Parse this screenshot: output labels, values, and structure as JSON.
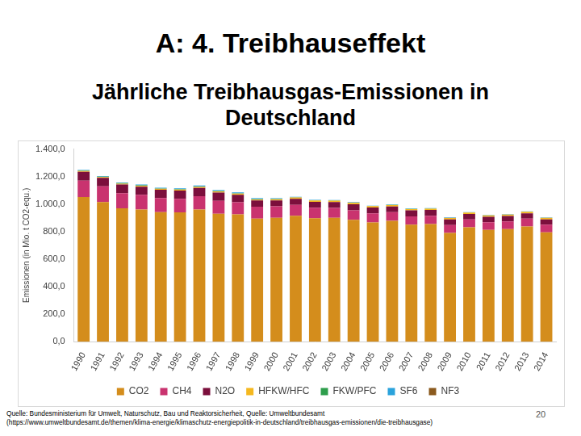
{
  "slide": {
    "heading": "A: 4. Treibhauseffekt",
    "source": [
      "Quelle: Bundesministerium für Umwelt, Naturschutz, Bau und Reaktorsicherheit, Quelle: Umweltbundesamt",
      "(https://www.umweltbundesamt.de/themen/klima-energie/klimaschutz-energiepolitik-in-deutschland/treibhausgas-emissionen/die-treibhausgase)"
    ],
    "page_number": "20"
  },
  "chart_data": {
    "type": "bar",
    "title": "Jährliche Treibhausgas-Emissionen in Deutschland",
    "y_label": "Emissionen (in Mio. t CO2-equ.)",
    "stacked": true,
    "grid": false,
    "legend": "bottom",
    "categories": [
      "1990",
      "1991",
      "1992",
      "1993",
      "1994",
      "1995",
      "1996",
      "1997",
      "1998",
      "1999",
      "2000",
      "2001",
      "2002",
      "2003",
      "2004",
      "2005",
      "2006",
      "2007",
      "2008",
      "2009",
      "2010",
      "2011",
      "2012",
      "2013",
      "2014"
    ],
    "ylim": [
      0,
      1400
    ],
    "yticks": [
      {
        "value": 0,
        "label": "0,0"
      },
      {
        "value": 200,
        "label": "200,0"
      },
      {
        "value": 400,
        "label": "400,0"
      },
      {
        "value": 600,
        "label": "600,0"
      },
      {
        "value": 800,
        "label": "800,0"
      },
      {
        "value": 1000,
        "label": "1.000,0"
      },
      {
        "value": 1200,
        "label": "1.200,0"
      },
      {
        "value": 1400,
        "label": "1.400,0"
      }
    ],
    "series": [
      {
        "name": "CO2",
        "color": "#d48d1c",
        "values": [
          1052,
          1015,
          970,
          960,
          942,
          940,
          960,
          930,
          925,
          895,
          900,
          915,
          898,
          900,
          885,
          867,
          878,
          850,
          855,
          790,
          832,
          812,
          818,
          838,
          795
        ]
      },
      {
        "name": "CH4",
        "color": "#c9336f",
        "values": [
          119,
          114,
          110,
          107,
          102,
          99,
          97,
          93,
          89,
          86,
          84,
          80,
          76,
          72,
          70,
          66,
          63,
          61,
          60,
          58,
          57,
          56,
          56,
          56,
          55
        ]
      },
      {
        "name": "N2O",
        "color": "#7b0f3c",
        "values": [
          64,
          62,
          63,
          60,
          60,
          60,
          61,
          61,
          54,
          45,
          43,
          44,
          43,
          43,
          44,
          42,
          42,
          43,
          42,
          41,
          39,
          39,
          39,
          39,
          39
        ]
      },
      {
        "name": "HFKW/HFC",
        "color": "#f5b81f",
        "values": [
          6,
          6,
          6,
          7,
          7,
          7,
          8,
          8,
          8,
          8,
          9,
          9,
          9,
          10,
          10,
          10,
          10,
          10,
          10,
          10,
          10,
          11,
          11,
          11,
          11
        ]
      },
      {
        "name": "FKW/PFC",
        "color": "#2e9e4c",
        "values": [
          3,
          3,
          3,
          3,
          2,
          2,
          2,
          2,
          2,
          2,
          1,
          1,
          1,
          1,
          1,
          1,
          1,
          1,
          1,
          0.5,
          0.5,
          0.4,
          0.3,
          0.3,
          0.3
        ]
      },
      {
        "name": "SF6",
        "color": "#2ba3dc",
        "values": [
          4,
          4,
          5,
          6,
          6,
          7,
          7,
          7,
          7,
          6,
          5,
          4,
          4,
          4,
          4,
          3,
          3,
          3,
          3,
          3,
          3,
          3,
          3,
          3,
          3
        ]
      },
      {
        "name": "NF3",
        "color": "#8b5a1e",
        "values": [
          0.1,
          0.1,
          0.1,
          0.1,
          0.1,
          0.1,
          0.1,
          0.1,
          0.1,
          0.1,
          0.1,
          0.1,
          0.1,
          0.1,
          0.1,
          0.1,
          0.1,
          0.1,
          0.1,
          0.1,
          0.1,
          0.1,
          0.1,
          0.1,
          0.1
        ]
      }
    ]
  }
}
